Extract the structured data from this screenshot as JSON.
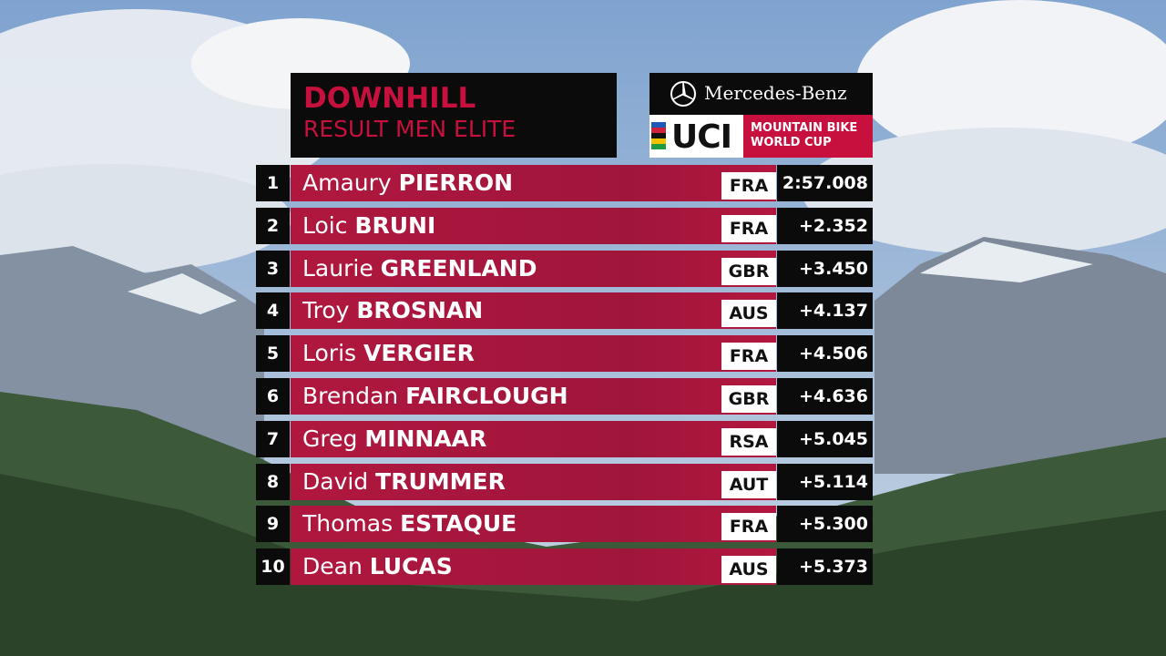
{
  "header": {
    "title": "DOWNHILL",
    "subtitle": "RESULT MEN ELITE"
  },
  "sponsor": {
    "brand": "Mercedes-Benz",
    "logo": "UCI",
    "series_lines": [
      "MOUNTAIN BIKE",
      "WORLD CUP"
    ]
  },
  "results": [
    {
      "rank": "1",
      "first": "Amaury",
      "last": "PIERRON",
      "country": "FRA",
      "time": "2:57.008"
    },
    {
      "rank": "2",
      "first": "Loic",
      "last": "BRUNI",
      "country": "FRA",
      "time": "+2.352"
    },
    {
      "rank": "3",
      "first": "Laurie",
      "last": "GREENLAND",
      "country": "GBR",
      "time": "+3.450"
    },
    {
      "rank": "4",
      "first": "Troy",
      "last": "BROSNAN",
      "country": "AUS",
      "time": "+4.137"
    },
    {
      "rank": "5",
      "first": "Loris",
      "last": "VERGIER",
      "country": "FRA",
      "time": "+4.506"
    },
    {
      "rank": "6",
      "first": "Brendan",
      "last": "FAIRCLOUGH",
      "country": "GBR",
      "time": "+4.636"
    },
    {
      "rank": "7",
      "first": "Greg",
      "last": "MINNAAR",
      "country": "RSA",
      "time": "+5.045"
    },
    {
      "rank": "8",
      "first": "David",
      "last": "TRUMMER",
      "country": "AUT",
      "time": "+5.114"
    },
    {
      "rank": "9",
      "first": "Thomas",
      "last": "ESTAQUE",
      "country": "FRA",
      "time": "+5.300"
    },
    {
      "rank": "10",
      "first": "Dean",
      "last": "LUCAS",
      "country": "AUS",
      "time": "+5.373"
    }
  ]
}
